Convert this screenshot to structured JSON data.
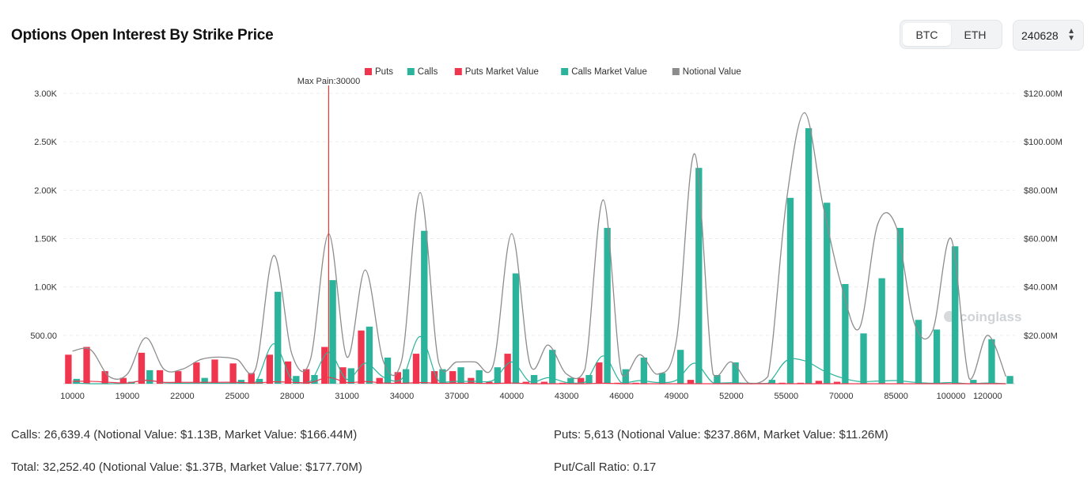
{
  "title": "Options Open Interest By Strike Price",
  "coin_toggle": {
    "options": [
      "BTC",
      "ETH"
    ],
    "selected": "BTC"
  },
  "expiry_select": {
    "value": "240628"
  },
  "watermark": "coinglass",
  "stats": {
    "calls": "Calls: 26,639.4 (Notional Value: $1.13B, Market Value: $166.44M)",
    "puts": "Puts: 5,613 (Notional Value: $237.86M, Market Value: $11.26M)",
    "total": "Total: 32,252.40 (Notional Value: $1.37B, Market Value: $177.70M)",
    "ratio": "Put/Call Ratio: 0.17"
  },
  "colors": {
    "puts": "#f0364f",
    "calls": "#2bb39b",
    "notional": "#8c8c8c",
    "grid": "#ececec",
    "axis_text": "#333333",
    "max_pain": "#e53935"
  },
  "chart_data": {
    "type": "bar",
    "legend": [
      "Puts",
      "Calls",
      "Puts Market Value",
      "Calls Market Value",
      "Notional Value"
    ],
    "legend_position": "top-center",
    "grid": true,
    "max_pain": {
      "label": "Max Pain:30000",
      "strike": 30000
    },
    "x_tick_labels": [
      "10000",
      "19000",
      "22000",
      "25000",
      "28000",
      "31000",
      "34000",
      "37000",
      "40000",
      "43000",
      "46000",
      "49000",
      "52000",
      "55000",
      "70000",
      "85000",
      "100000",
      "120000"
    ],
    "y_left": {
      "ticks": [
        "500.00",
        "1.00K",
        "1.50K",
        "2.00K",
        "2.50K",
        "3.00K"
      ],
      "range": [
        0,
        3000
      ]
    },
    "y_right": {
      "ticks": [
        "$20.00M",
        "$40.00M",
        "$60.00M",
        "$80.00M",
        "$100.00M",
        "$120.00M"
      ],
      "range": [
        0,
        120000000
      ]
    },
    "strikes": [
      10000,
      15000,
      18000,
      19000,
      20000,
      21000,
      22000,
      23000,
      24000,
      25000,
      26000,
      27000,
      28000,
      29000,
      30000,
      31000,
      32000,
      33000,
      34000,
      35000,
      36000,
      37000,
      38000,
      39000,
      40000,
      41000,
      42000,
      43000,
      44000,
      45000,
      46000,
      47000,
      48000,
      49000,
      50000,
      51000,
      52000,
      53000,
      54000,
      55000,
      60000,
      65000,
      70000,
      75000,
      80000,
      85000,
      90000,
      95000,
      100000,
      110000,
      120000,
      150000
    ],
    "series": [
      {
        "name": "Puts",
        "axis": "left",
        "values": [
          300,
          380,
          130,
          60,
          320,
          140,
          130,
          220,
          250,
          210,
          110,
          300,
          230,
          150,
          380,
          170,
          550,
          60,
          120,
          310,
          130,
          130,
          60,
          20,
          310,
          20,
          20,
          10,
          60,
          220,
          10,
          10,
          0,
          0,
          40,
          0,
          0,
          0,
          0,
          10,
          10,
          30,
          20,
          0,
          0,
          0,
          0,
          0,
          0,
          0,
          0,
          0
        ]
      },
      {
        "name": "Calls",
        "axis": "left",
        "values": [
          50,
          0,
          0,
          20,
          140,
          0,
          0,
          60,
          0,
          40,
          50,
          950,
          80,
          90,
          1070,
          160,
          590,
          270,
          150,
          1580,
          150,
          170,
          140,
          170,
          1140,
          90,
          350,
          60,
          90,
          1610,
          150,
          270,
          110,
          350,
          2230,
          90,
          220,
          0,
          40,
          1920,
          2640,
          1870,
          1030,
          520,
          1090,
          1610,
          660,
          560,
          1420,
          40,
          460,
          80
        ]
      },
      {
        "name": "Puts Market Value",
        "axis": "right",
        "values": [
          1,
          1,
          0.6,
          0.3,
          1.4,
          0.6,
          0.6,
          0.6,
          0.6,
          0.6,
          0.3,
          0.8,
          0.6,
          0.5,
          2.6,
          0.5,
          0.9,
          0.3,
          0.2,
          0.5,
          0.2,
          0.2,
          0.2,
          0.1,
          0.3,
          0,
          0,
          0,
          0,
          0.2,
          0,
          0,
          0,
          0,
          0,
          0,
          0,
          0,
          0,
          0,
          0,
          0,
          0,
          0,
          0,
          0,
          0,
          0,
          0,
          0,
          0,
          0
        ]
      },
      {
        "name": "Calls Market Value",
        "axis": "right",
        "values": [
          0.4,
          0,
          0,
          0.2,
          1.5,
          0.4,
          0.2,
          0.3,
          0.2,
          0.3,
          0.6,
          16.5,
          1.6,
          1,
          13,
          1.8,
          8.5,
          2.7,
          2,
          19.5,
          1.2,
          1,
          1,
          1.5,
          9,
          0.8,
          2.5,
          0.5,
          0.6,
          11.5,
          0.4,
          1.3,
          0.5,
          1.5,
          8.5,
          0.4,
          0.4,
          0.2,
          0.2,
          9.5,
          9.5,
          5.5,
          2.5,
          0.9,
          1.1,
          1.3,
          0.6,
          0.2,
          0.5,
          0,
          0.3,
          0
        ]
      },
      {
        "name": "Notional Value",
        "axis": "right",
        "values": [
          13.5,
          14,
          3,
          4,
          19,
          6,
          6,
          10,
          11,
          10,
          6,
          53,
          12,
          10,
          62,
          11,
          47,
          9,
          10,
          79,
          9,
          9,
          9,
          8,
          62,
          8,
          16,
          4,
          6,
          76,
          4,
          12,
          4,
          18,
          95,
          4,
          9,
          0,
          3,
          75,
          112,
          74,
          41,
          23,
          66,
          65,
          25,
          22,
          60,
          2,
          20,
          3
        ]
      }
    ]
  }
}
